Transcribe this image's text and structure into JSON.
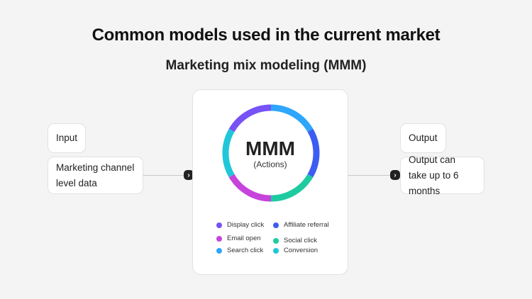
{
  "title": "Common models used in the current market",
  "subtitle": "Marketing mix modeling (MMM)",
  "input": {
    "label": "Input",
    "text": "Marketing channel level data"
  },
  "output": {
    "label": "Output",
    "text": "Output can take up to 6 months"
  },
  "arrow_icon": "chevron-right-icon",
  "center": {
    "title": "MMM",
    "subtitle": "(Actions)"
  },
  "ring_segments": [
    {
      "name": "Search click",
      "color": "#2ea6fb"
    },
    {
      "name": "Affiliate referral",
      "color": "#3d5df2"
    },
    {
      "name": "Social click",
      "color": "#1ecba0"
    },
    {
      "name": "Email open",
      "color": "#c644dc"
    },
    {
      "name": "Conversion",
      "color": "#1fc7d8"
    },
    {
      "name": "Display click",
      "color": "#7752f5"
    }
  ],
  "legend": [
    {
      "label": "Display click",
      "color": "#7752f5"
    },
    {
      "label": "Affiliate referral",
      "color": "#3d5df2"
    },
    {
      "label": "Email open",
      "color": "#c644dc"
    },
    {
      "label": "Social click",
      "color": "#1ecba0"
    },
    {
      "label": "Search click",
      "color": "#2ea6fb"
    },
    {
      "label": "Conversion",
      "color": "#1fc7d8"
    }
  ]
}
